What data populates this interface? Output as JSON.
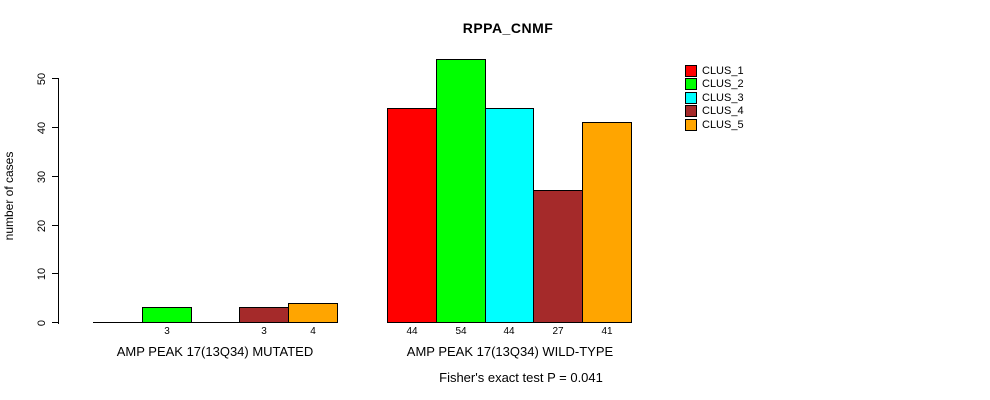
{
  "title": "RPPA_CNMF",
  "footer": "Fisher's exact test P = 0.041",
  "chart_data": {
    "type": "bar",
    "title": "RPPA_CNMF",
    "xlabel": "",
    "ylabel": "number of cases",
    "ylim": [
      0,
      50
    ],
    "y_ticks": [
      0,
      10,
      20,
      30,
      40,
      50
    ],
    "grid": false,
    "legend_position": "top-right",
    "bar_borders": "black",
    "series": [
      {
        "name": "CLUS_1",
        "color": "#FF0000"
      },
      {
        "name": "CLUS_2",
        "color": "#00FF00"
      },
      {
        "name": "CLUS_3",
        "color": "#00FFFF"
      },
      {
        "name": "CLUS_4",
        "color": "#A52A2A"
      },
      {
        "name": "CLUS_5",
        "color": "#FFA500"
      }
    ],
    "groups": [
      {
        "label": "AMP PEAK 17(13Q34) MUTATED",
        "values": [
          0,
          3,
          0,
          3,
          4
        ]
      },
      {
        "label": "AMP PEAK 17(13Q34) WILD-TYPE",
        "values": [
          44,
          54,
          44,
          27,
          41
        ]
      }
    ],
    "value_labels_shown_for_nonzero_bars": true,
    "annotation": "Fisher's exact test P = 0.041"
  }
}
